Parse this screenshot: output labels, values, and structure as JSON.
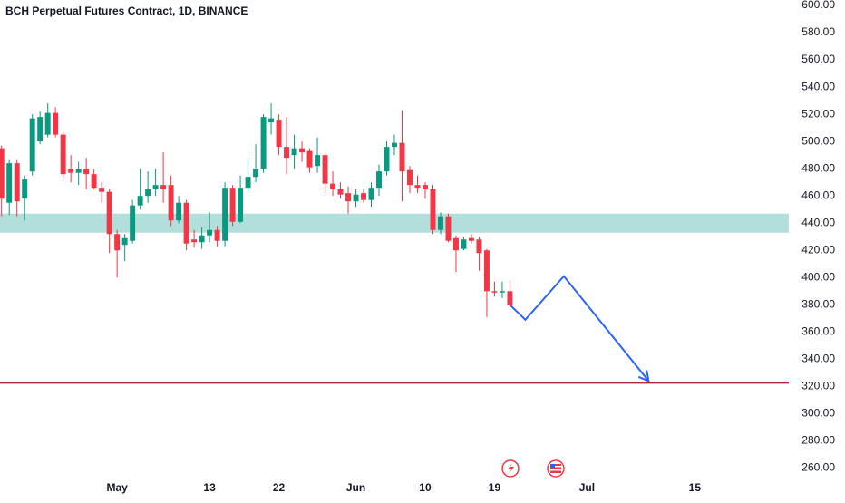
{
  "chart_data": {
    "type": "candlestick",
    "title": "BCH Perpetual Futures Contract, 1D, BINANCE",
    "x": [
      106,
      107,
      108,
      109,
      110,
      111,
      112,
      113,
      114,
      115,
      116,
      117,
      118,
      119,
      120,
      121,
      122,
      123,
      124,
      125,
      126,
      127,
      128,
      129,
      130,
      131,
      132,
      133,
      134,
      135,
      136,
      137,
      138,
      139,
      140,
      141,
      142,
      143,
      144,
      145,
      146,
      147,
      148,
      149,
      150,
      151,
      152,
      153,
      154,
      155,
      156,
      157,
      158,
      159,
      160,
      161,
      162,
      163,
      164,
      165,
      166,
      167,
      168,
      169,
      170,
      171,
      172
    ],
    "open": [
      495,
      455,
      484,
      458,
      478,
      500,
      505,
      521,
      505,
      480,
      477,
      480,
      476,
      466,
      463,
      432,
      424,
      427,
      453,
      460,
      465,
      468,
      468,
      442,
      455,
      428,
      426,
      431,
      435,
      427,
      466,
      441,
      466,
      474,
      480,
      514,
      516,
      496,
      490,
      495,
      493,
      482,
      490,
      469,
      465,
      462,
      456,
      462,
      457,
      466,
      478,
      496,
      499,
      479,
      468,
      468,
      465,
      435,
      445,
      429,
      421,
      429,
      428,
      420,
      390,
      389,
      390
    ],
    "high": [
      497,
      487,
      487,
      475,
      520,
      522,
      528,
      525,
      507,
      490,
      485,
      488,
      480,
      470,
      465,
      435,
      432,
      457,
      480,
      478,
      480,
      492,
      475,
      460,
      457,
      435,
      437,
      448,
      438,
      470,
      468,
      475,
      488,
      498,
      520,
      528,
      520,
      518,
      505,
      500,
      495,
      503,
      492,
      478,
      470,
      467,
      465,
      465,
      470,
      483,
      500,
      505,
      523,
      482,
      475,
      470,
      468,
      448,
      447,
      431,
      430,
      432,
      430,
      421,
      397,
      397,
      398
    ],
    "low": [
      445,
      446,
      445,
      442,
      475,
      498,
      503,
      503,
      473,
      470,
      468,
      465,
      465,
      455,
      418,
      400,
      412,
      425,
      450,
      455,
      460,
      455,
      438,
      440,
      420,
      422,
      421,
      426,
      423,
      423,
      438,
      440,
      462,
      470,
      477,
      505,
      490,
      476,
      480,
      485,
      477,
      477,
      462,
      460,
      458,
      447,
      452,
      455,
      452,
      460,
      475,
      490,
      456,
      462,
      462,
      458,
      432,
      432,
      426,
      404,
      420,
      425,
      405,
      371,
      386,
      385,
      378
    ],
    "close": [
      458,
      484,
      456,
      472,
      517,
      518,
      521,
      505,
      476,
      477,
      480,
      476,
      466,
      463,
      432,
      420,
      429,
      453,
      460,
      465,
      468,
      465,
      442,
      455,
      425,
      426,
      431,
      435,
      427,
      466,
      441,
      466,
      474,
      480,
      518,
      517,
      496,
      488,
      495,
      492,
      481,
      490,
      469,
      465,
      461,
      456,
      461,
      457,
      466,
      478,
      496,
      499,
      478,
      468,
      466,
      465,
      435,
      445,
      427,
      420,
      428,
      427,
      418,
      390,
      389,
      390,
      380
    ],
    "up_color": "#089981",
    "down_color": "#f23645",
    "xlim": [
      105.8,
      208.2
    ],
    "xticks": [
      {
        "value": 121,
        "label": "May"
      },
      {
        "value": 133,
        "label": "13"
      },
      {
        "value": 142,
        "label": "22"
      },
      {
        "value": 152,
        "label": "Jun"
      },
      {
        "value": 161,
        "label": "10"
      },
      {
        "value": 170,
        "label": "19"
      },
      {
        "value": 182,
        "label": "Jul"
      },
      {
        "value": 196,
        "label": "15"
      }
    ],
    "ylim": [
      256.3,
      604
    ],
    "yticks": [
      {
        "value": 600,
        "label": "600.00"
      },
      {
        "value": 580,
        "label": "580.00"
      },
      {
        "value": 560,
        "label": "560.00"
      },
      {
        "value": 540,
        "label": "540.00"
      },
      {
        "value": 520,
        "label": "520.00"
      },
      {
        "value": 500,
        "label": "500.00"
      },
      {
        "value": 480,
        "label": "480.00"
      },
      {
        "value": 460,
        "label": "460.00"
      },
      {
        "value": 440,
        "label": "440.00"
      },
      {
        "value": 420,
        "label": "420.00"
      },
      {
        "value": 400,
        "label": "400.00"
      },
      {
        "value": 380,
        "label": "380.00"
      },
      {
        "value": 360,
        "label": "360.00"
      },
      {
        "value": 340,
        "label": "340.00"
      },
      {
        "value": 320,
        "label": "320.00"
      },
      {
        "value": 300,
        "label": "300.00"
      },
      {
        "value": 280,
        "label": "280.00"
      },
      {
        "value": 260,
        "label": "260.00"
      }
    ],
    "zone": {
      "range": [
        433,
        447
      ],
      "color": "#b2dfdb"
    },
    "level": {
      "value": 322.5,
      "color": "#b22833"
    },
    "projection": {
      "x": [
        172,
        174,
        179,
        190
      ],
      "y": [
        380,
        369,
        401,
        324
      ],
      "color": "#2962ff"
    }
  }
}
